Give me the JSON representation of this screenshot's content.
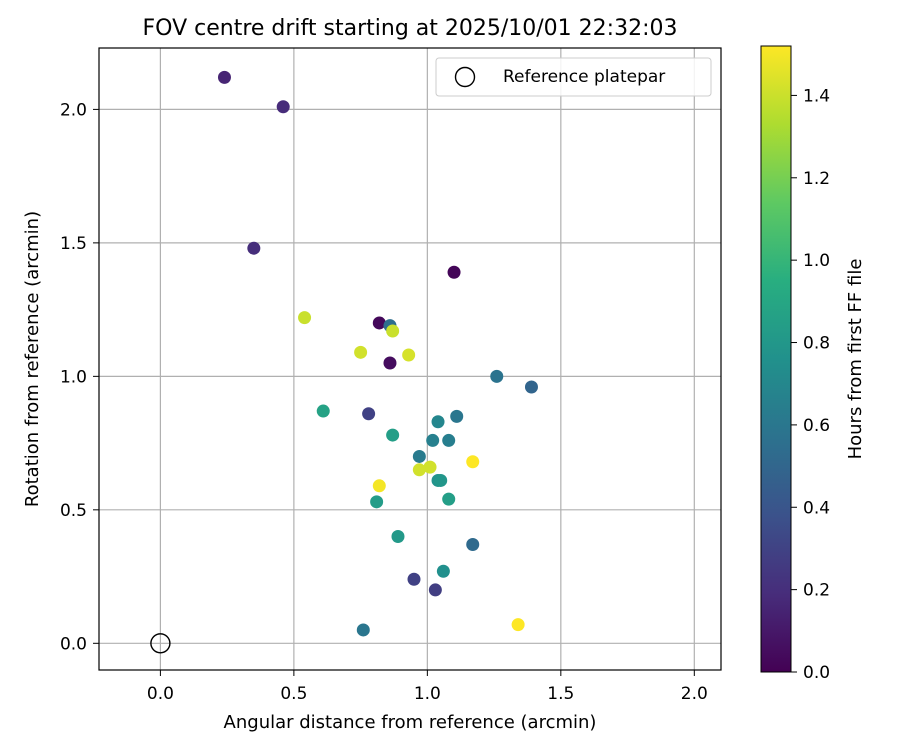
{
  "chart_data": {
    "type": "scatter",
    "title": "FOV centre drift starting at 2025/10/01 22:32:03",
    "xlabel": "Angular distance from reference (arcmin)",
    "ylabel": "Rotation from reference (arcmin)",
    "xlim": [
      -0.23,
      2.1
    ],
    "ylim": [
      -0.1,
      2.23
    ],
    "xticks": [
      0.0,
      0.5,
      1.0,
      1.5,
      2.0
    ],
    "xtick_labels": [
      "0.0",
      "0.5",
      "1.0",
      "1.5",
      "2.0"
    ],
    "yticks": [
      0.0,
      0.5,
      1.0,
      1.5,
      2.0
    ],
    "ytick_labels": [
      "0.0",
      "0.5",
      "1.0",
      "1.5",
      "2.0"
    ],
    "grid": true,
    "legend": {
      "label": "Reference platepar",
      "location": "upper right"
    },
    "reference_point": {
      "x": 0.0,
      "y": 0.0
    },
    "colorbar": {
      "label": "Hours from first FF file",
      "range": [
        0.0,
        1.52
      ],
      "ticks": [
        0.0,
        0.2,
        0.4,
        0.6,
        0.8,
        1.0,
        1.2,
        1.4
      ],
      "tick_labels": [
        "0.0",
        "0.2",
        "0.4",
        "0.6",
        "0.8",
        "1.0",
        "1.2",
        "1.4"
      ],
      "colormap": "viridis"
    },
    "points": [
      {
        "x": 0.24,
        "y": 2.12,
        "c": 0.16
      },
      {
        "x": 0.46,
        "y": 2.01,
        "c": 0.19
      },
      {
        "x": 0.35,
        "y": 1.48,
        "c": 0.2
      },
      {
        "x": 1.1,
        "y": 1.39,
        "c": 0.02
      },
      {
        "x": 0.54,
        "y": 1.22,
        "c": 1.4
      },
      {
        "x": 0.82,
        "y": 1.2,
        "c": 0.03
      },
      {
        "x": 0.86,
        "y": 1.19,
        "c": 0.55
      },
      {
        "x": 0.87,
        "y": 1.17,
        "c": 1.4
      },
      {
        "x": 0.75,
        "y": 1.09,
        "c": 1.42
      },
      {
        "x": 0.93,
        "y": 1.08,
        "c": 1.43
      },
      {
        "x": 0.86,
        "y": 1.05,
        "c": 0.05
      },
      {
        "x": 1.26,
        "y": 1.0,
        "c": 0.58
      },
      {
        "x": 1.39,
        "y": 0.96,
        "c": 0.5
      },
      {
        "x": 0.61,
        "y": 0.87,
        "c": 0.88
      },
      {
        "x": 0.78,
        "y": 0.86,
        "c": 0.3
      },
      {
        "x": 1.04,
        "y": 0.83,
        "c": 0.7
      },
      {
        "x": 1.11,
        "y": 0.85,
        "c": 0.6
      },
      {
        "x": 0.87,
        "y": 0.78,
        "c": 0.85
      },
      {
        "x": 1.02,
        "y": 0.76,
        "c": 0.66
      },
      {
        "x": 1.08,
        "y": 0.76,
        "c": 0.65
      },
      {
        "x": 0.97,
        "y": 0.7,
        "c": 0.63
      },
      {
        "x": 1.17,
        "y": 0.68,
        "c": 1.52
      },
      {
        "x": 1.01,
        "y": 0.66,
        "c": 1.42
      },
      {
        "x": 0.97,
        "y": 0.65,
        "c": 1.42
      },
      {
        "x": 1.04,
        "y": 0.61,
        "c": 0.78
      },
      {
        "x": 1.05,
        "y": 0.61,
        "c": 0.8
      },
      {
        "x": 0.82,
        "y": 0.59,
        "c": 1.5
      },
      {
        "x": 1.08,
        "y": 0.54,
        "c": 0.85
      },
      {
        "x": 0.81,
        "y": 0.53,
        "c": 0.84
      },
      {
        "x": 0.89,
        "y": 0.4,
        "c": 0.82
      },
      {
        "x": 1.17,
        "y": 0.37,
        "c": 0.53
      },
      {
        "x": 1.06,
        "y": 0.27,
        "c": 0.76
      },
      {
        "x": 0.95,
        "y": 0.24,
        "c": 0.3
      },
      {
        "x": 1.03,
        "y": 0.2,
        "c": 0.28
      },
      {
        "x": 1.34,
        "y": 0.07,
        "c": 1.52
      },
      {
        "x": 0.76,
        "y": 0.05,
        "c": 0.6
      }
    ]
  }
}
